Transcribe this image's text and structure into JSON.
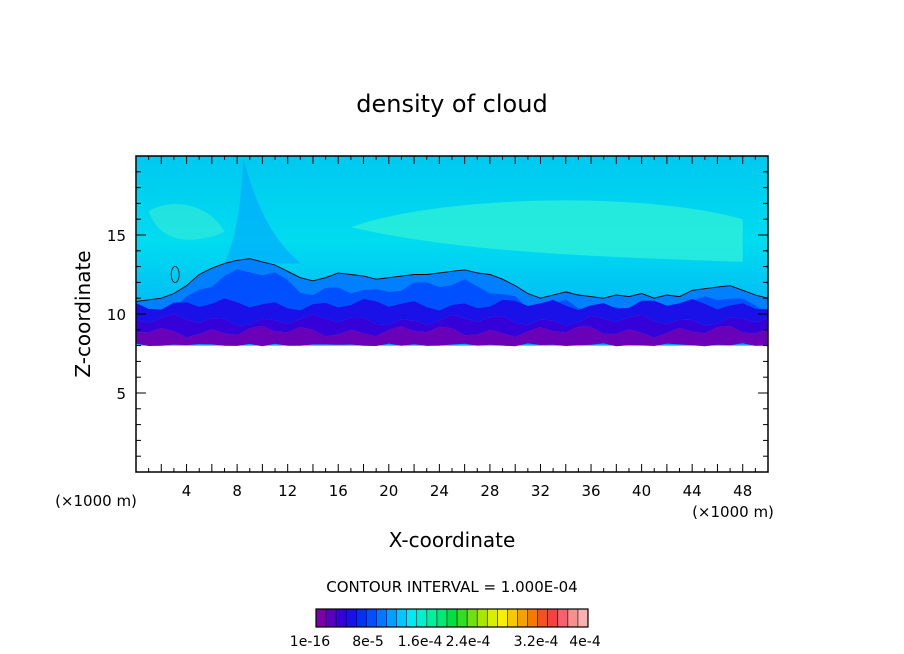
{
  "chart_data": {
    "type": "heatmap",
    "title": "density of cloud",
    "xlabel": "X-coordinate",
    "ylabel": "Z-coordinate",
    "x_unit": "(×1000 m)",
    "xlim": [
      0,
      50
    ],
    "ylim": [
      0,
      20
    ],
    "x_ticks": [
      4,
      8,
      12,
      16,
      20,
      24,
      28,
      32,
      36,
      40,
      44,
      48
    ],
    "y_ticks": [
      5,
      10,
      15
    ],
    "contour_interval_text": "CONTOUR INTERVAL = 1.000E-04",
    "colorbar_labels": [
      "1e-16",
      "8e-5",
      "1.6e-4",
      "2.4e-4",
      "3.2e-4",
      "4e-4"
    ],
    "colorbar_colors": [
      "#7a00a8",
      "#5a00c0",
      "#3600d8",
      "#1a10e8",
      "#0030f0",
      "#0050ff",
      "#0078ff",
      "#00a0ff",
      "#00c8ff",
      "#00e8f0",
      "#00f0d0",
      "#00f0a0",
      "#00e878",
      "#00e040",
      "#30e020",
      "#70e010",
      "#a8e800",
      "#d8f000",
      "#f8f000",
      "#f8c800",
      "#f8a000",
      "#f87800",
      "#f85020",
      "#f84040",
      "#f86070",
      "#f89090",
      "#f8b0b0"
    ],
    "field": {
      "cloud_base_z": 8,
      "cloud_top_contour_z": [
        10.8,
        10.9,
        11.0,
        11.3,
        11.8,
        12.5,
        12.9,
        13.2,
        13.4,
        13.5,
        13.3,
        13.1,
        12.7,
        12.3,
        12.1,
        12.3,
        12.6,
        12.5,
        12.4,
        12.2,
        12.3,
        12.4,
        12.5,
        12.5,
        12.6,
        12.7,
        12.8,
        12.6,
        12.5,
        12.2,
        11.8,
        11.3,
        11.0,
        11.2,
        11.4,
        11.2,
        11.1,
        11.0,
        11.2,
        11.1,
        11.3,
        11.0,
        11.2,
        11.1,
        11.5,
        11.6,
        11.7,
        11.8,
        11.5,
        11.2,
        11.0
      ]
    }
  }
}
